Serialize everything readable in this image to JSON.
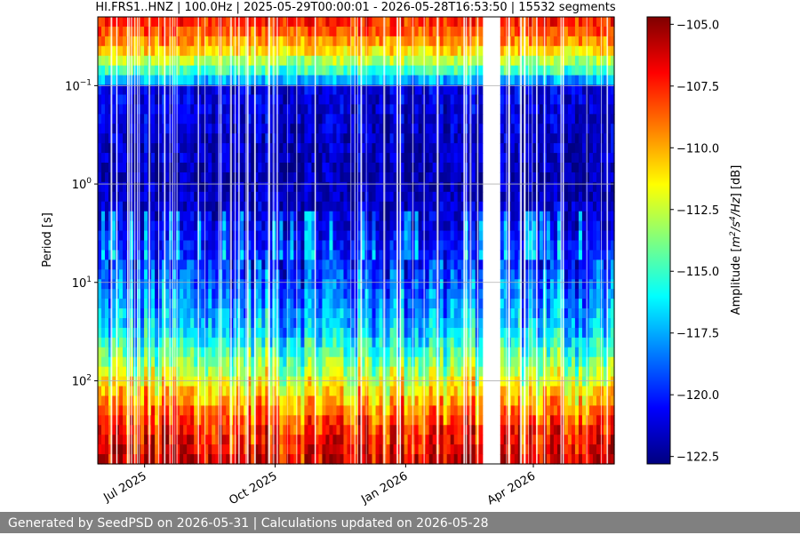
{
  "chart_data": {
    "type": "heatmap",
    "title": "HI.FRS1..HNZ | 100.0Hz | 2025-05-29T00:00:01 - 2026-05-28T16:53:50 | 15532 segments",
    "ylabel": "Period [s]",
    "xlabel": "",
    "y_scale": "log",
    "y_direction": "inverted",
    "ylim": [
      0.02,
      700
    ],
    "y_ticks": [
      {
        "value": 0.1,
        "base": "10",
        "exp": "−1"
      },
      {
        "value": 1,
        "base": "10",
        "exp": "0"
      },
      {
        "value": 10,
        "base": "10",
        "exp": "1"
      },
      {
        "value": 100,
        "base": "10",
        "exp": "2"
      }
    ],
    "xlim": [
      "2025-05-29",
      "2026-05-28"
    ],
    "x_ticks": [
      {
        "date": "2025-07-01",
        "label": "Jul 2025"
      },
      {
        "date": "2025-10-01",
        "label": "Oct 2025"
      },
      {
        "date": "2026-01-01",
        "label": "Jan 2026"
      },
      {
        "date": "2026-04-01",
        "label": "Apr 2026"
      }
    ],
    "grid": "horizontal",
    "data_gap": {
      "start": "2026-02-25",
      "end": "2026-03-08"
    },
    "colorbar": {
      "label_parts": [
        "Amplitude [",
        "m",
        "2",
        "/s",
        "4",
        "/Hz",
        "] [dB]"
      ],
      "vmin": -122.8,
      "vmax": -104.7,
      "ticks": [
        "−105.0",
        "−107.5",
        "−110.0",
        "−112.5",
        "−115.0",
        "−117.5",
        "−120.0",
        "−122.5"
      ],
      "colormap": "jet",
      "colormap_stops": [
        "#00007f",
        "#0000ff",
        "#007fff",
        "#00ffff",
        "#7fff7f",
        "#ffff00",
        "#ff7f00",
        "#ff0000",
        "#7f0000"
      ]
    },
    "period_profile": [
      {
        "period": 0.022,
        "dB": -107.5
      },
      {
        "period": 0.04,
        "dB": -110.0
      },
      {
        "period": 0.08,
        "dB": -116.0
      },
      {
        "period": 0.11,
        "dB": -121.0
      },
      {
        "period": 1,
        "dB": -122.0
      },
      {
        "period": 3,
        "dB": -121.0
      },
      {
        "period": 10,
        "dB": -119.0
      },
      {
        "period": 30,
        "dB": -117.0
      },
      {
        "period": 100,
        "dB": -112.0
      },
      {
        "period": 300,
        "dB": -107.5
      },
      {
        "period": 700,
        "dB": -106.0
      }
    ]
  },
  "footer": {
    "text": "Generated by SeedPSD on 2026-05-31 | Calculations updated on 2026-05-28"
  }
}
